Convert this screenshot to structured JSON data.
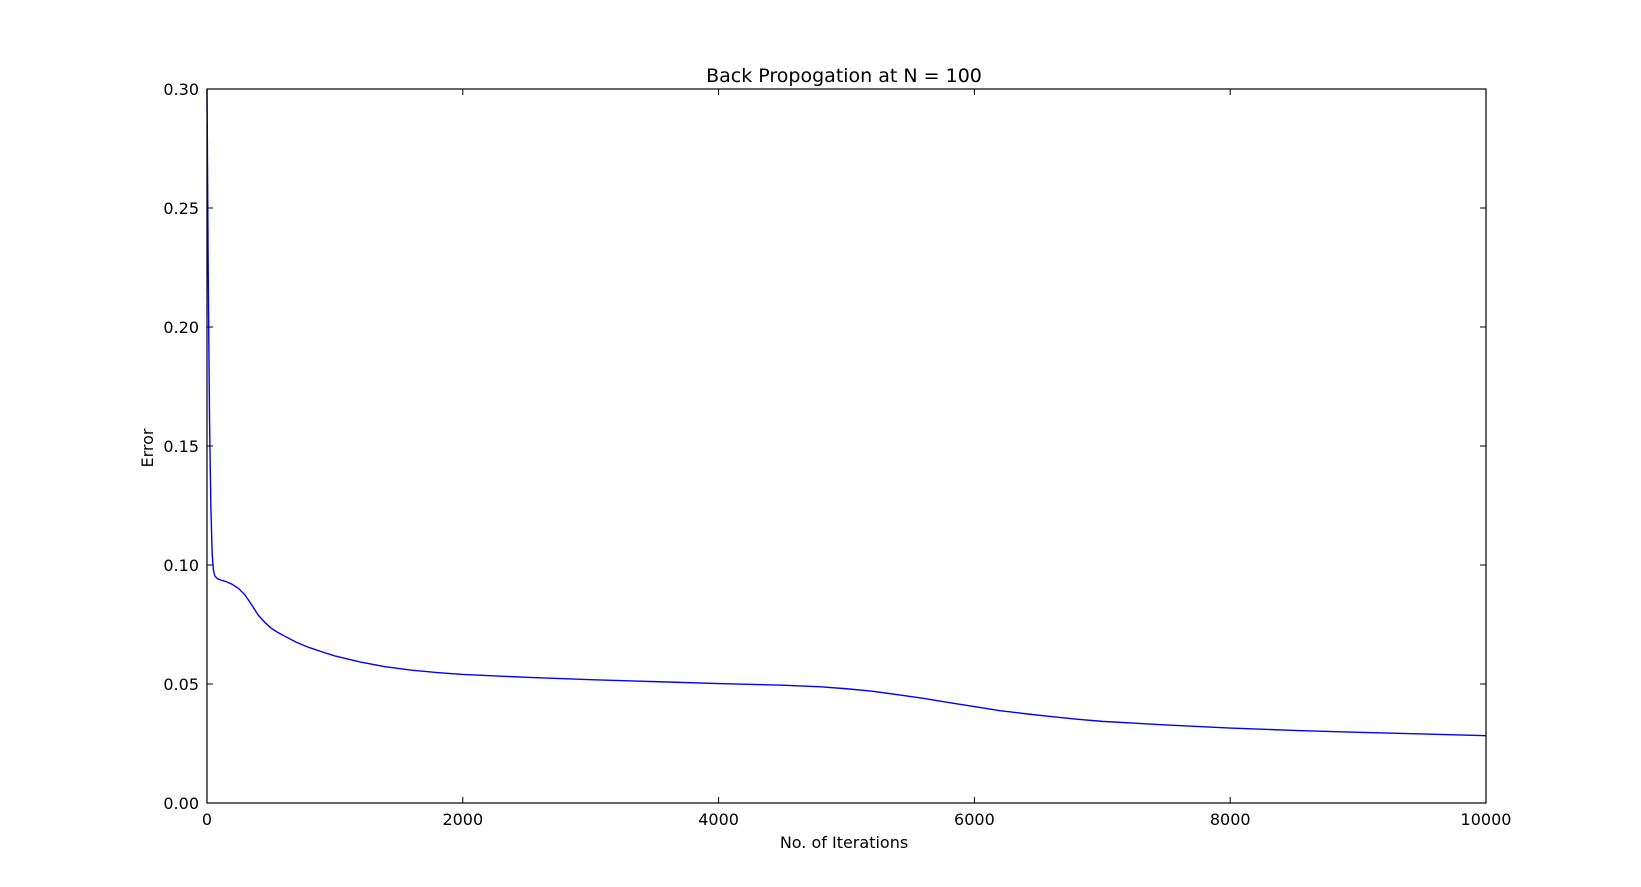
{
  "chart_data": {
    "type": "line",
    "title": "Back Propogation at N = 100",
    "xlabel": "No. of Iterations",
    "ylabel": "Error",
    "xlim": [
      0,
      10000
    ],
    "ylim": [
      0.0,
      0.3
    ],
    "xticks": [
      0,
      2000,
      4000,
      6000,
      8000,
      10000
    ],
    "xtick_labels": [
      "0",
      "2000",
      "4000",
      "6000",
      "8000",
      "10000"
    ],
    "yticks": [
      0.0,
      0.05,
      0.1,
      0.15,
      0.2,
      0.25,
      0.3
    ],
    "ytick_labels": [
      "0.00",
      "0.05",
      "0.10",
      "0.15",
      "0.20",
      "0.25",
      "0.30"
    ],
    "grid": false,
    "legend": "none",
    "series_color": "#0000ff",
    "series": [
      {
        "x": [
          0,
          5,
          10,
          20,
          30,
          40,
          50,
          60,
          80,
          100,
          150,
          200,
          250,
          300,
          350,
          400,
          450,
          500,
          550,
          600,
          700,
          800,
          900,
          1000,
          1200,
          1400,
          1600,
          1800,
          2000,
          2500,
          3000,
          3500,
          4000,
          4500,
          4800,
          5000,
          5200,
          5400,
          5600,
          5800,
          6000,
          6200,
          6400,
          6600,
          6800,
          7000,
          7500,
          8000,
          8500,
          9000,
          9500,
          10000
        ],
        "y": [
          0.3,
          0.26,
          0.22,
          0.16,
          0.125,
          0.105,
          0.098,
          0.0955,
          0.0943,
          0.0938,
          0.093,
          0.0918,
          0.09,
          0.0872,
          0.0832,
          0.079,
          0.076,
          0.0735,
          0.0718,
          0.0703,
          0.0675,
          0.0653,
          0.0635,
          0.0618,
          0.0592,
          0.0572,
          0.0558,
          0.0548,
          0.054,
          0.0528,
          0.0518,
          0.051,
          0.0502,
          0.0495,
          0.0488,
          0.048,
          0.047,
          0.0455,
          0.044,
          0.0422,
          0.0405,
          0.0388,
          0.0375,
          0.0363,
          0.0352,
          0.0343,
          0.0328,
          0.0315,
          0.0305,
          0.0297,
          0.029,
          0.0283
        ]
      }
    ]
  }
}
